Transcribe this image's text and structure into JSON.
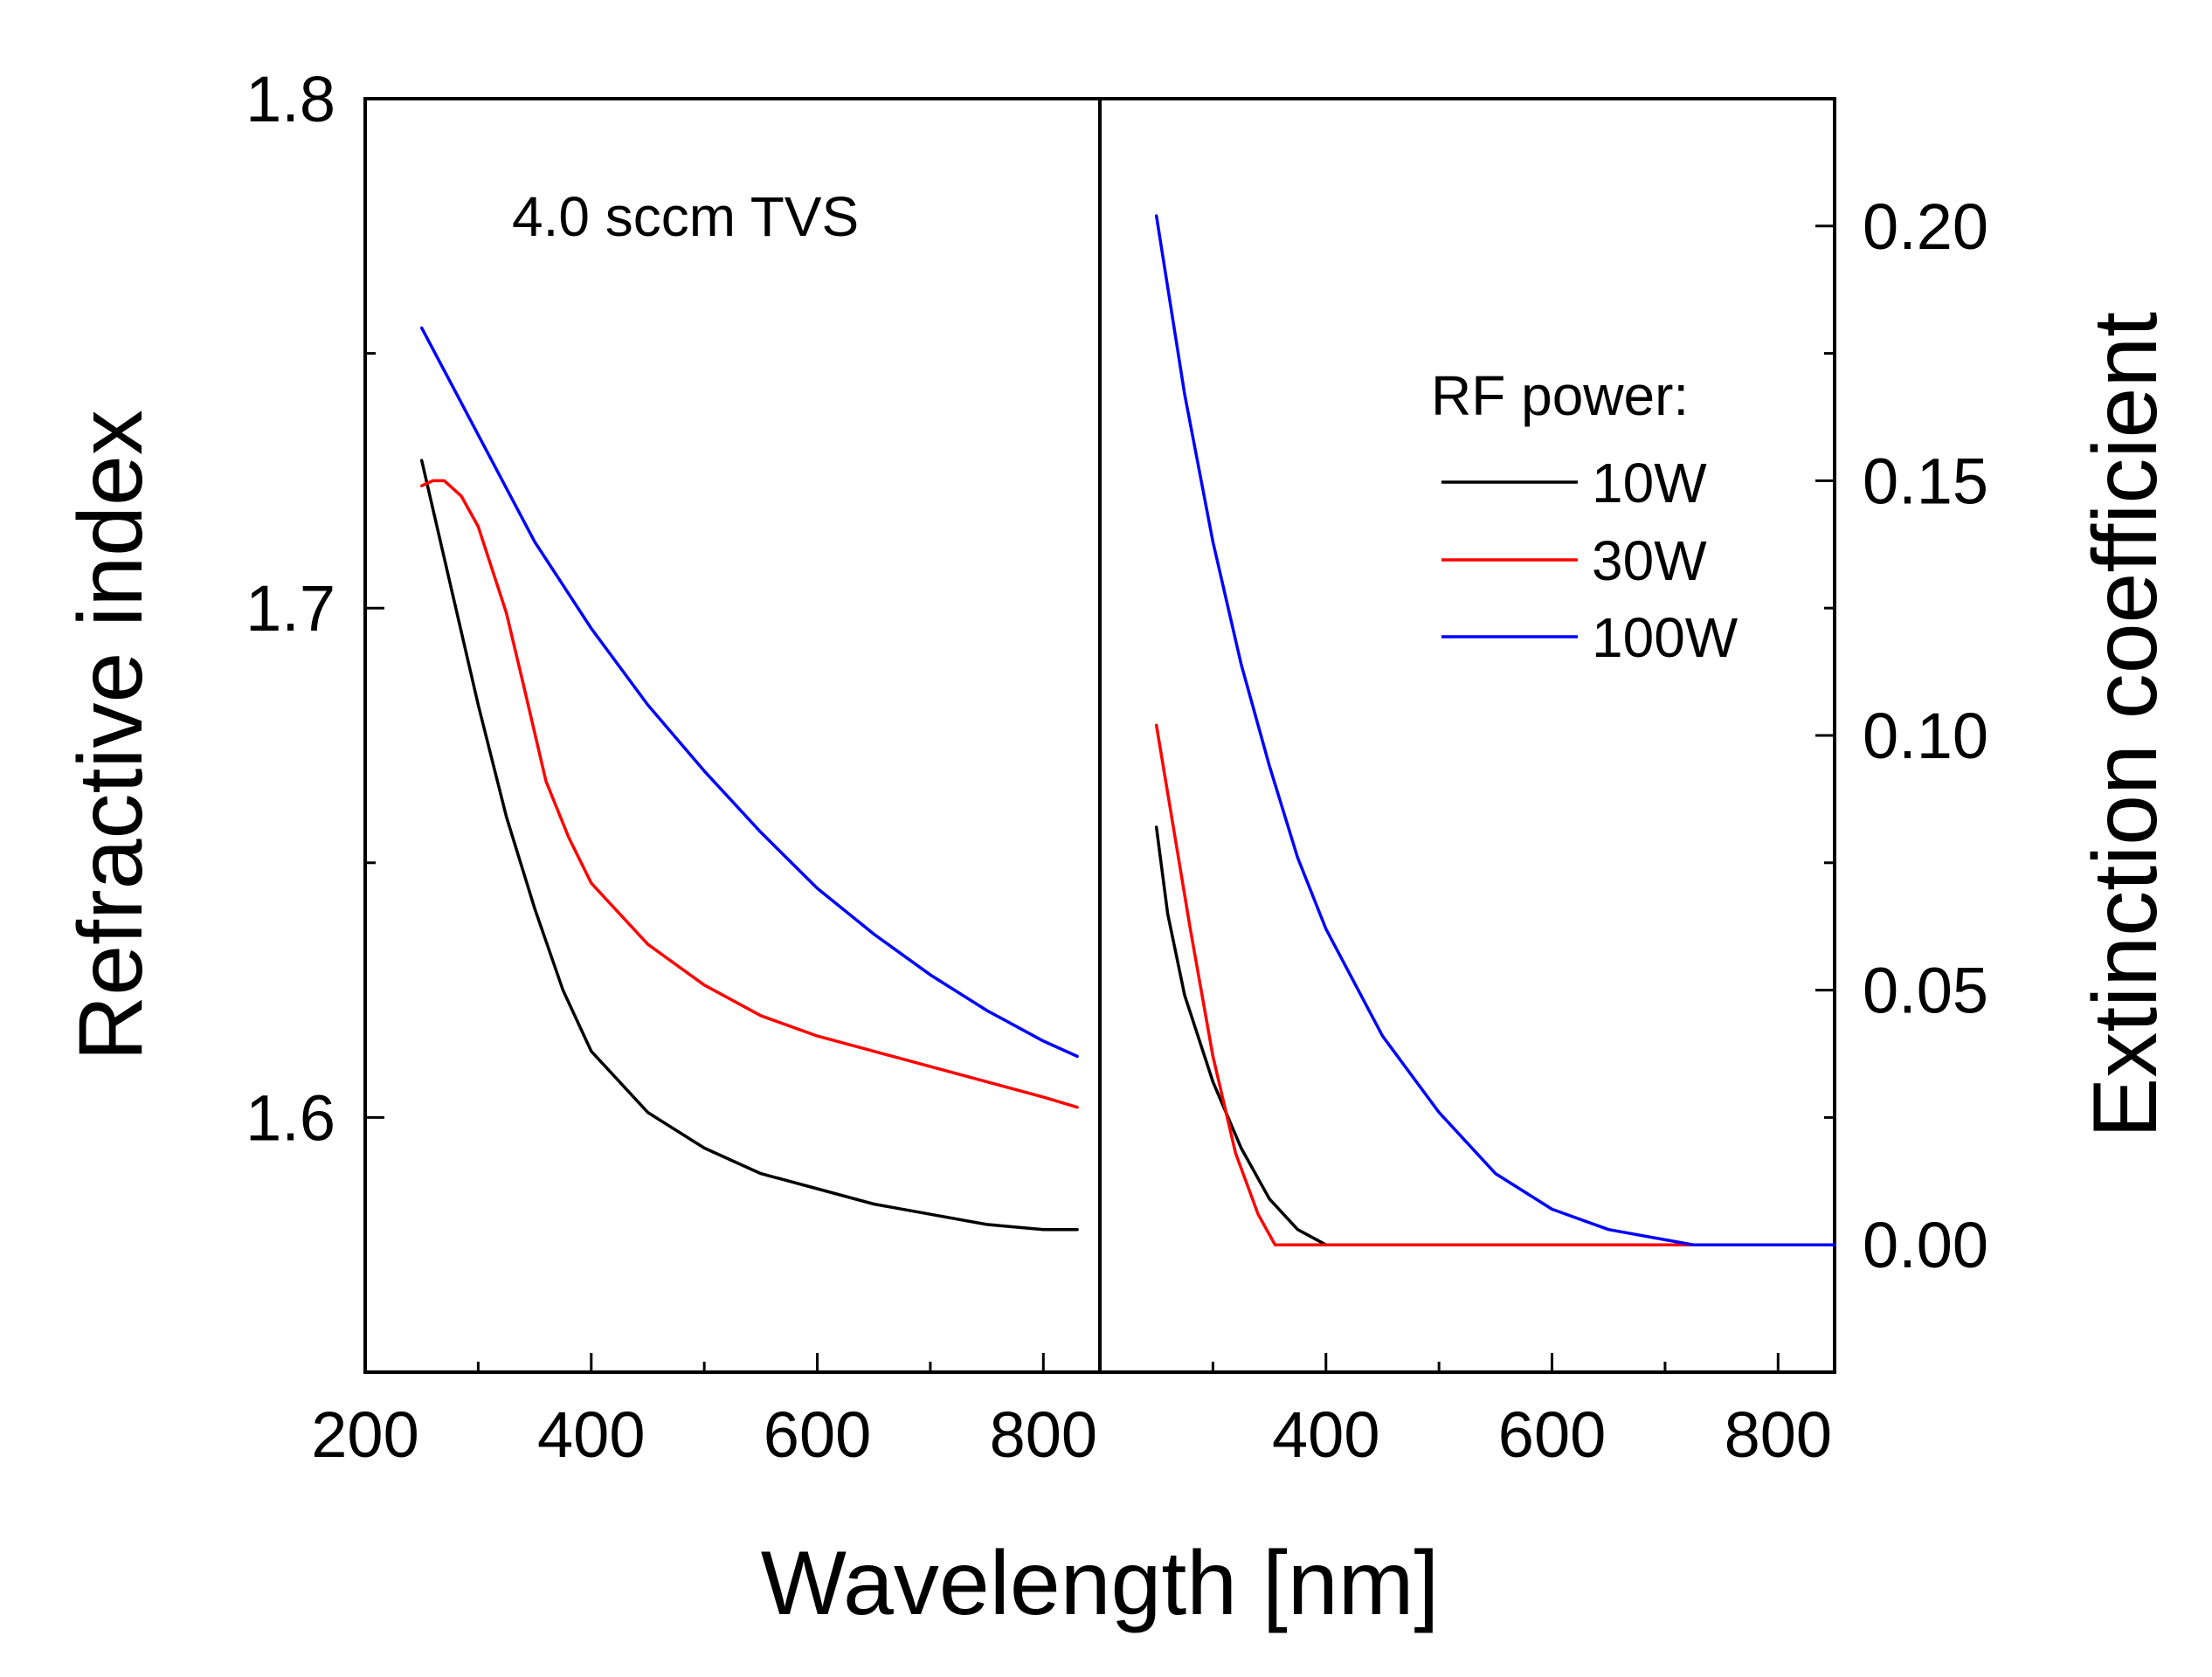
{
  "chart_data": {
    "type": "line",
    "annotation": "4.0 sccm TVS",
    "xlabel": "Wavelength [nm]",
    "legend": {
      "title": "RF power:",
      "placement": "top-right of right panel"
    },
    "colors": {
      "10W": "#000000",
      "30W": "#ff0000",
      "100W": "#0000ff"
    },
    "panels": [
      {
        "id": "refractive",
        "ylabel": "Refractive index",
        "xlim": [
          200,
          850
        ],
        "ylim": [
          1.55,
          1.8
        ],
        "xticks": [
          200,
          400,
          600,
          800
        ],
        "xtick_labels": [
          "200",
          "400",
          "600",
          "800"
        ],
        "yticks": [
          1.6,
          1.7,
          1.8
        ],
        "ytick_labels": [
          "1.6",
          "1.7",
          "1.8"
        ],
        "series": [
          {
            "name": "10W",
            "x": [
              250,
              275,
              300,
              325,
              350,
              375,
              400,
              450,
              500,
              550,
              600,
              650,
              700,
              750,
              800,
              830
            ],
            "y": [
              1.729,
              1.705,
              1.681,
              1.659,
              1.641,
              1.625,
              1.613,
              1.601,
              1.594,
              1.589,
              1.586,
              1.583,
              1.581,
              1.579,
              1.578,
              1.578
            ]
          },
          {
            "name": "30W",
            "x": [
              250,
              260,
              270,
              285,
              300,
              325,
              340,
              360,
              380,
              400,
              450,
              500,
              550,
              600,
              650,
              700,
              750,
              800,
              830
            ],
            "y": [
              1.724,
              1.725,
              1.725,
              1.722,
              1.716,
              1.699,
              1.685,
              1.666,
              1.655,
              1.646,
              1.634,
              1.626,
              1.62,
              1.616,
              1.613,
              1.61,
              1.607,
              1.604,
              1.602
            ]
          },
          {
            "name": "100W",
            "x": [
              250,
              300,
              350,
              400,
              450,
              500,
              550,
              600,
              650,
              700,
              750,
              800,
              830
            ],
            "y": [
              1.755,
              1.734,
              1.713,
              1.696,
              1.681,
              1.668,
              1.656,
              1.645,
              1.636,
              1.628,
              1.621,
              1.615,
              1.612
            ]
          }
        ]
      },
      {
        "id": "extinction",
        "ylabel": "Extinction coefficient",
        "xlim": [
          200,
          850
        ],
        "ylim": [
          -0.025,
          0.225
        ],
        "xticks": [
          400,
          600,
          800
        ],
        "xtick_labels": [
          "400",
          "600",
          "800"
        ],
        "yticks": [
          0.0,
          0.05,
          0.1,
          0.15,
          0.2
        ],
        "ytick_labels": [
          "0.00",
          "0.05",
          "0.10",
          "0.15",
          "0.20"
        ],
        "series": [
          {
            "name": "10W",
            "x": [
              250,
              260,
              275,
              300,
              325,
              350,
              375,
              400,
              850
            ],
            "y": [
              0.082,
              0.065,
              0.049,
              0.032,
              0.019,
              0.009,
              0.003,
              0.0,
              0.0
            ]
          },
          {
            "name": "30W",
            "x": [
              250,
              265,
              280,
              300,
              320,
              340,
              355,
              400,
              850
            ],
            "y": [
              0.102,
              0.082,
              0.062,
              0.037,
              0.018,
              0.006,
              0.0,
              0.0,
              0.0
            ]
          },
          {
            "name": "100W",
            "x": [
              250,
              275,
              300,
              325,
              350,
              375,
              400,
              450,
              500,
              550,
              600,
              650,
              700,
              725,
              850
            ],
            "y": [
              0.202,
              0.167,
              0.138,
              0.114,
              0.094,
              0.076,
              0.062,
              0.041,
              0.026,
              0.014,
              0.007,
              0.003,
              0.001,
              0.0,
              0.0
            ]
          }
        ]
      }
    ]
  }
}
